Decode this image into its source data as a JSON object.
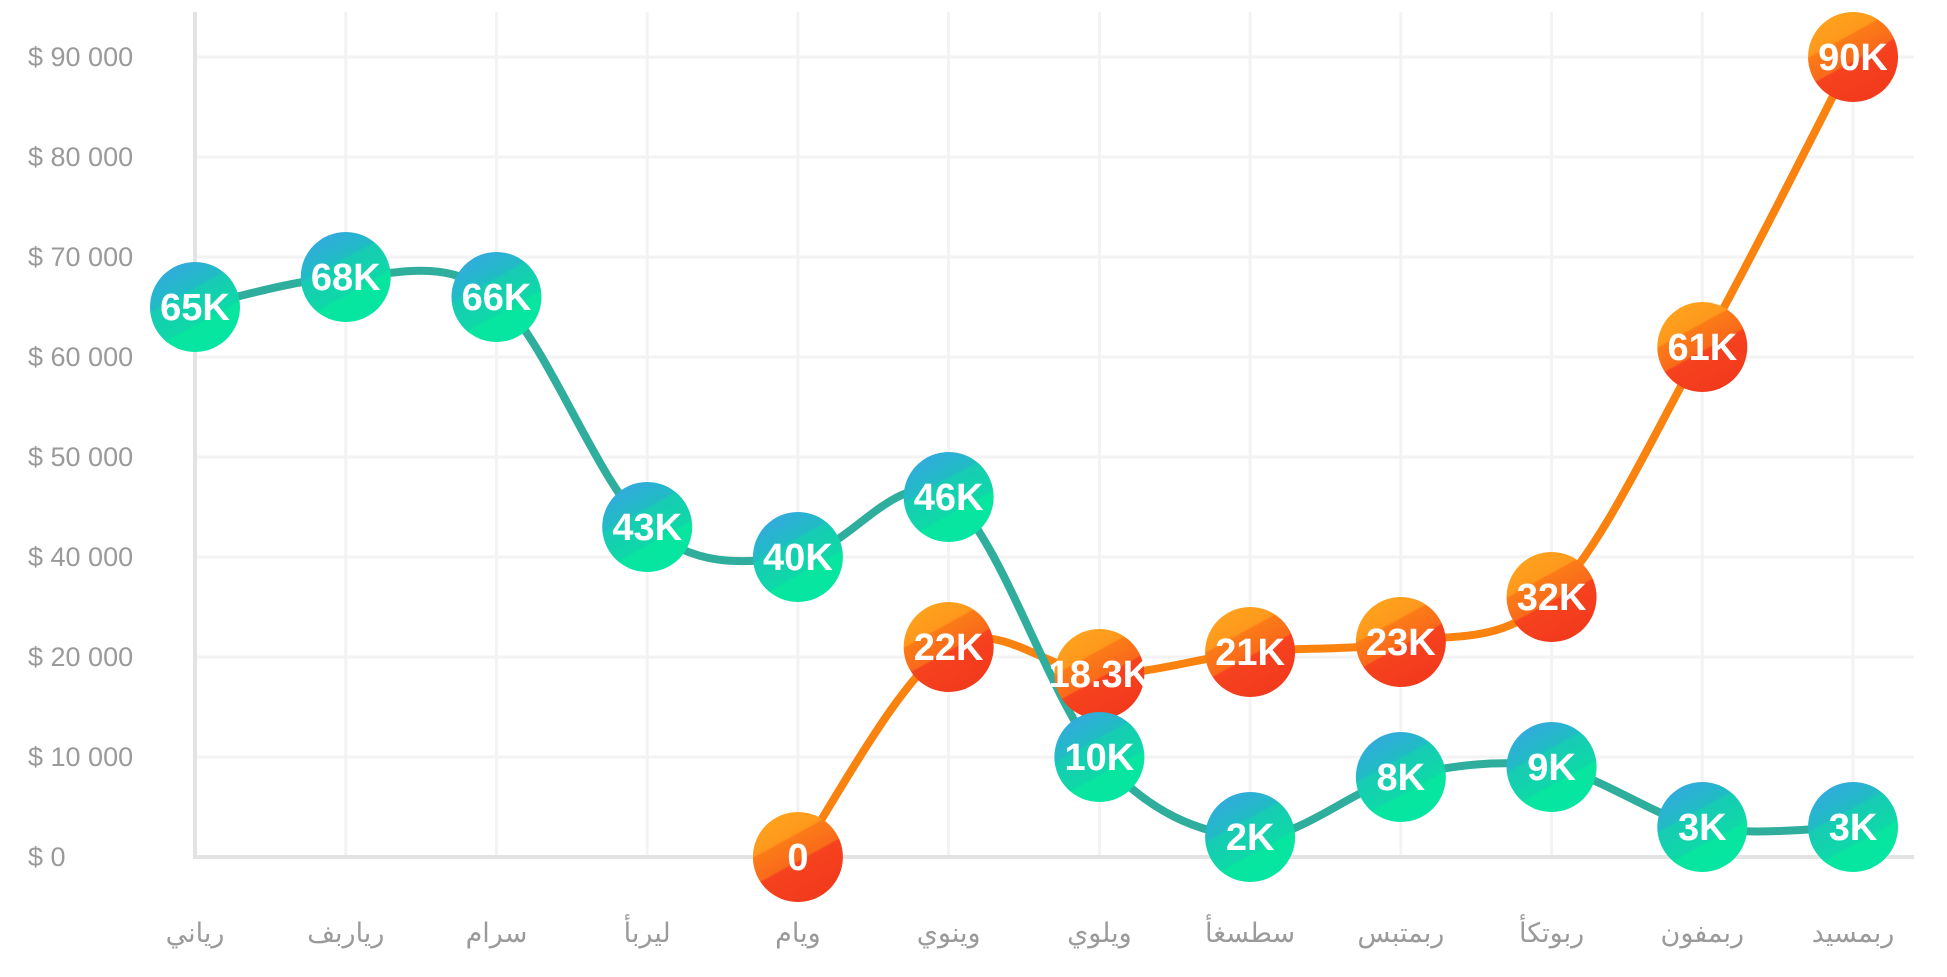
{
  "chart_data": {
    "type": "line",
    "title": "",
    "categories": [
      "رياني",
      "رياربف",
      "سرام",
      "ليربأ",
      "ويام",
      "وينوي",
      "ويلوي",
      "سطسغأ",
      "ربمتبس",
      "ربوتكأ",
      "ربمفون",
      "ربمسيد"
    ],
    "x_axis": {
      "label": "",
      "text_color": "#9a9a9a"
    },
    "y_axis": {
      "label": "",
      "tick_labels": [
        "$ 90 000",
        "$ 80 000",
        "$ 70 000",
        "$ 60 000",
        "$ 50 000",
        "$ 40 000",
        "$ 20 000",
        "$ 10 000",
        "$ 0"
      ],
      "tick_values": [
        90000,
        80000,
        70000,
        60000,
        50000,
        40000,
        20000,
        10000,
        0
      ],
      "text_color": "#9a9a9a"
    },
    "grid": {
      "show": true,
      "line_color": "#f3f3f3",
      "axis_color": "#e3e3e3"
    },
    "legend": {
      "position": "none"
    },
    "point_label_color": "#ffffff",
    "series": [
      {
        "name": "series-orange",
        "line_color": "#fa830f",
        "bubble_gradient": [
          {
            "offset": 0.0,
            "color": "#ffa81c"
          },
          {
            "offset": 0.36,
            "color": "#fe981d"
          },
          {
            "offset": 0.38,
            "color": "#fb7b17"
          },
          {
            "offset": 0.6,
            "color": "#f96a1b"
          },
          {
            "offset": 0.62,
            "color": "#f6421f"
          },
          {
            "offset": 1.0,
            "color": "#f23a1c"
          }
        ],
        "start_index": 4,
        "values": [
          0,
          22000,
          18300,
          21000,
          23000,
          32000,
          61000,
          90000
        ],
        "point_labels": [
          "0",
          "22K",
          "18.3K",
          "21K",
          "23K",
          "32K",
          "61K",
          "90K"
        ]
      },
      {
        "name": "series-teal",
        "line_color": "#2fae9e",
        "bubble_gradient": [
          {
            "offset": 0.0,
            "color": "#3aa3e8"
          },
          {
            "offset": 0.4,
            "color": "#20bcc4"
          },
          {
            "offset": 0.42,
            "color": "#17cbb4"
          },
          {
            "offset": 0.72,
            "color": "#0fd8a8"
          },
          {
            "offset": 0.74,
            "color": "#08e59e"
          },
          {
            "offset": 1.0,
            "color": "#05e6a2"
          }
        ],
        "start_index": 0,
        "values": [
          65000,
          68000,
          66000,
          43000,
          40000,
          46000,
          10000,
          2000,
          8000,
          9000,
          3000,
          3000
        ],
        "point_labels": [
          "65K",
          "68K",
          "66K",
          "43K",
          "40K",
          "46K",
          "10K",
          "2K",
          "8K",
          "9K",
          "3K",
          "3K"
        ]
      }
    ]
  }
}
